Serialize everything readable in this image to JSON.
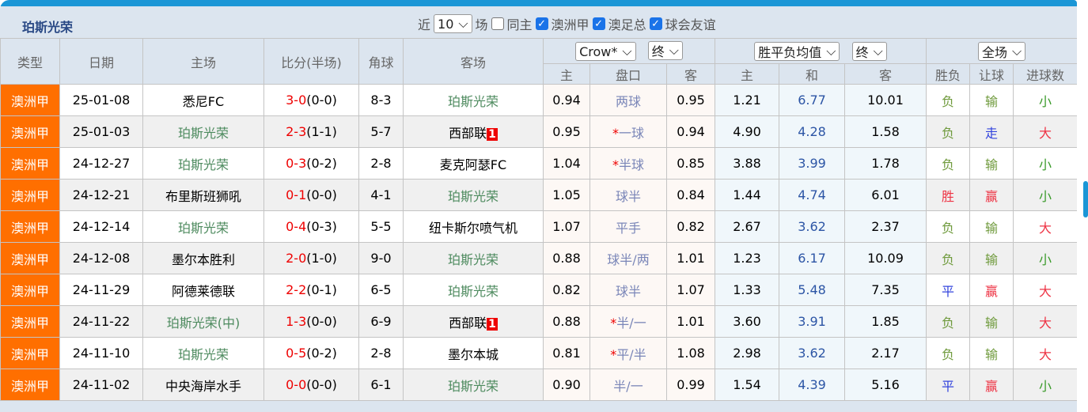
{
  "title": "珀斯光荣",
  "filters": {
    "prefix": "近",
    "count": "10",
    "suffix": "场",
    "same_home": {
      "label": "同主",
      "checked": false
    },
    "leagues": [
      {
        "label": "澳洲甲",
        "checked": true
      },
      {
        "label": "澳足总",
        "checked": true
      },
      {
        "label": "球会友谊",
        "checked": true
      }
    ]
  },
  "headers": {
    "type": "类型",
    "date": "日期",
    "home": "主场",
    "score": "比分(半场)",
    "corner": "角球",
    "away": "客场",
    "company": "Crow*",
    "stage1": "终",
    "odds_type": "胜平负均值",
    "stage2": "终",
    "period": "全场",
    "h_home": "主",
    "h_line": "盘口",
    "h_away": "客",
    "o_home": "主",
    "o_draw": "和",
    "o_away": "客",
    "r_wl": "胜负",
    "r_hc": "让球",
    "r_goals": "进球数"
  },
  "rows": [
    {
      "type": "澳洲甲",
      "date": "25-01-08",
      "home": "悉尼FC",
      "home_team": false,
      "score": "3-0",
      "half": "(0-0)",
      "corner": "8-3",
      "away": "珀斯光荣",
      "away_team": true,
      "badge": "",
      "hh": "0.94",
      "star": "",
      "line": "两球",
      "ha": "0.95",
      "oh": "1.21",
      "od": "6.77",
      "oa": "10.01",
      "wl": "负",
      "hc": "输",
      "goals": "小"
    },
    {
      "type": "澳洲甲",
      "date": "25-01-03",
      "home": "珀斯光荣",
      "home_team": true,
      "score": "2-3",
      "half": "(1-1)",
      "corner": "5-7",
      "away": "西部联",
      "away_team": false,
      "badge": "1",
      "hh": "0.95",
      "star": "*",
      "line": "一球",
      "ha": "0.94",
      "oh": "4.90",
      "od": "4.28",
      "oa": "1.58",
      "wl": "负",
      "hc": "走",
      "goals": "大"
    },
    {
      "type": "澳洲甲",
      "date": "24-12-27",
      "home": "珀斯光荣",
      "home_team": true,
      "score": "0-3",
      "half": "(0-2)",
      "corner": "2-8",
      "away": "麦克阿瑟FC",
      "away_team": false,
      "badge": "",
      "hh": "1.04",
      "star": "*",
      "line": "半球",
      "ha": "0.85",
      "oh": "3.88",
      "od": "3.99",
      "oa": "1.78",
      "wl": "负",
      "hc": "输",
      "goals": "小"
    },
    {
      "type": "澳洲甲",
      "date": "24-12-21",
      "home": "布里斯班狮吼",
      "home_team": false,
      "score": "0-1",
      "half": "(0-0)",
      "corner": "4-1",
      "away": "珀斯光荣",
      "away_team": true,
      "badge": "",
      "hh": "1.05",
      "star": "",
      "line": "球半",
      "ha": "0.84",
      "oh": "1.44",
      "od": "4.74",
      "oa": "6.01",
      "wl": "胜",
      "hc": "赢",
      "goals": "小"
    },
    {
      "type": "澳洲甲",
      "date": "24-12-14",
      "home": "珀斯光荣",
      "home_team": true,
      "score": "0-4",
      "half": "(0-3)",
      "corner": "5-5",
      "away": "纽卡斯尔喷气机",
      "away_team": false,
      "badge": "",
      "hh": "1.07",
      "star": "",
      "line": "平手",
      "ha": "0.82",
      "oh": "2.67",
      "od": "3.62",
      "oa": "2.37",
      "wl": "负",
      "hc": "输",
      "goals": "大"
    },
    {
      "type": "澳洲甲",
      "date": "24-12-08",
      "home": "墨尔本胜利",
      "home_team": false,
      "score": "2-0",
      "half": "(1-0)",
      "corner": "9-0",
      "away": "珀斯光荣",
      "away_team": true,
      "badge": "",
      "hh": "0.88",
      "star": "",
      "line": "球半/两",
      "ha": "1.01",
      "oh": "1.23",
      "od": "6.17",
      "oa": "10.09",
      "wl": "负",
      "hc": "输",
      "goals": "小"
    },
    {
      "type": "澳洲甲",
      "date": "24-11-29",
      "home": "阿德莱德联",
      "home_team": false,
      "score": "2-2",
      "half": "(0-1)",
      "corner": "6-5",
      "away": "珀斯光荣",
      "away_team": true,
      "badge": "",
      "hh": "0.82",
      "star": "",
      "line": "球半",
      "ha": "1.07",
      "oh": "1.33",
      "od": "5.48",
      "oa": "7.35",
      "wl": "平",
      "hc": "赢",
      "goals": "大"
    },
    {
      "type": "澳洲甲",
      "date": "24-11-22",
      "home": "珀斯光荣(中)",
      "home_team": true,
      "score": "1-3",
      "half": "(0-0)",
      "corner": "6-9",
      "away": "西部联",
      "away_team": false,
      "badge": "1",
      "hh": "0.88",
      "star": "*",
      "line": "半/一",
      "ha": "1.01",
      "oh": "3.60",
      "od": "3.91",
      "oa": "1.85",
      "wl": "负",
      "hc": "输",
      "goals": "大"
    },
    {
      "type": "澳洲甲",
      "date": "24-11-10",
      "home": "珀斯光荣",
      "home_team": true,
      "score": "0-5",
      "half": "(0-2)",
      "corner": "2-8",
      "away": "墨尔本城",
      "away_team": false,
      "badge": "",
      "hh": "0.81",
      "star": "*",
      "line": "平/半",
      "ha": "1.08",
      "oh": "2.98",
      "od": "3.62",
      "oa": "2.17",
      "wl": "负",
      "hc": "输",
      "goals": "大"
    },
    {
      "type": "澳洲甲",
      "date": "24-11-02",
      "home": "中央海岸水手",
      "home_team": false,
      "score": "0-0",
      "half": "(0-0)",
      "corner": "6-1",
      "away": "珀斯光荣",
      "away_team": true,
      "badge": "",
      "hh": "0.90",
      "star": "",
      "line": "半/一",
      "ha": "0.99",
      "oh": "1.54",
      "od": "4.39",
      "oa": "5.16",
      "wl": "平",
      "hc": "赢",
      "goals": "小"
    }
  ]
}
